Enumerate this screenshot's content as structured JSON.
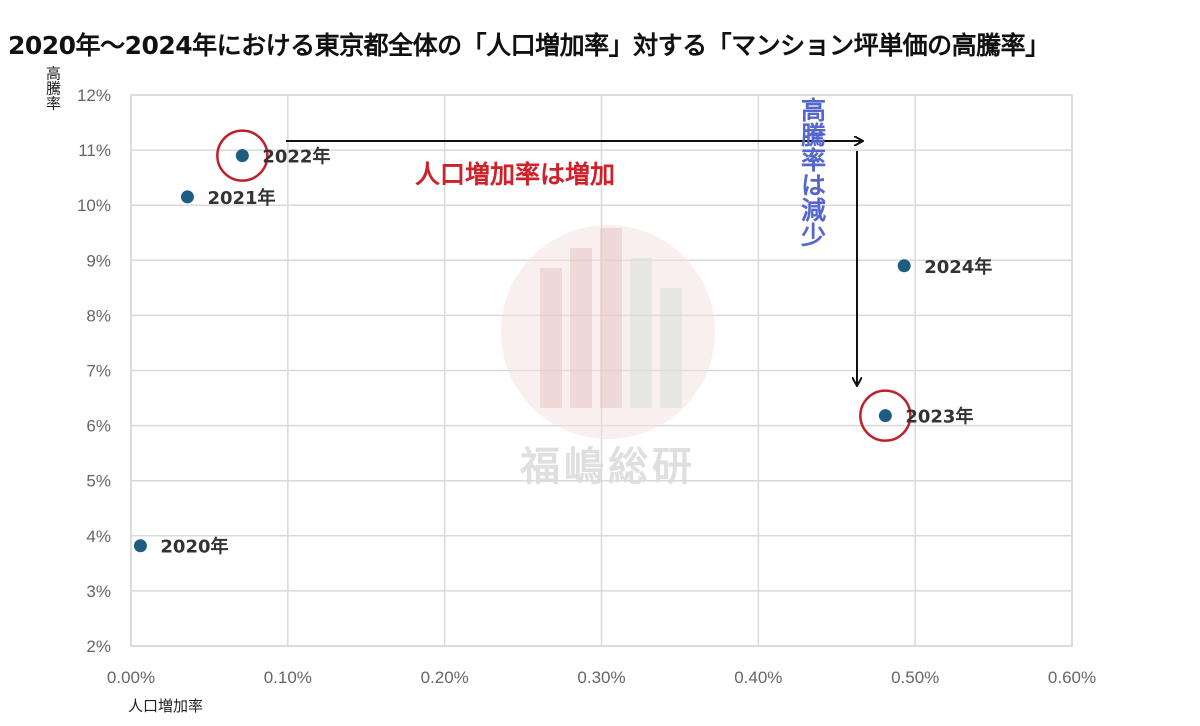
{
  "title": "2020年～2024年における東京都全体の「人口増加率」対する「マンション坪単価の高騰率」",
  "watermark": "福嶋総研",
  "chart_data": {
    "type": "scatter",
    "xlabel": "人口増加率",
    "ylabel": "高騰率",
    "xlim": [
      0.0,
      0.6
    ],
    "ylim": [
      2,
      12
    ],
    "xticks": [
      "0.00%",
      "0.10%",
      "0.20%",
      "0.30%",
      "0.40%",
      "0.50%",
      "0.60%"
    ],
    "yticks": [
      "2%",
      "3%",
      "4%",
      "5%",
      "6%",
      "7%",
      "8%",
      "9%",
      "10%",
      "11%",
      "12%"
    ],
    "grid": true,
    "points": [
      {
        "label": "2020年",
        "x": 0.006,
        "y": 3.82
      },
      {
        "label": "2021年",
        "x": 0.036,
        "y": 10.15
      },
      {
        "label": "2022年",
        "x": 0.071,
        "y": 10.9
      },
      {
        "label": "2023年",
        "x": 0.481,
        "y": 6.18
      },
      {
        "label": "2024年",
        "x": 0.493,
        "y": 8.9
      }
    ],
    "marker_color": "#1f5c82",
    "highlighted": [
      "2022年",
      "2023年"
    ],
    "highlight_color": "#c0202a",
    "annotations": [
      {
        "text": "人口増加率は増加",
        "color": "#d0202a"
      },
      {
        "text": "高騰率は減少",
        "color": "#5566cc"
      }
    ]
  }
}
